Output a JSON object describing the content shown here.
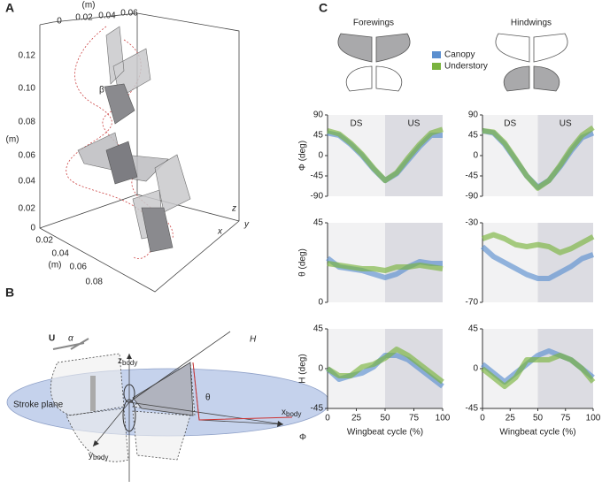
{
  "panel_a": {
    "label": "A",
    "unit": "(m)",
    "top_ticks": [
      "0",
      "0.02",
      "0.04",
      "0.06"
    ],
    "left_ticks": [
      "0.12",
      "0.10",
      "0.08",
      "0.06",
      "0.04",
      "0.02",
      "0"
    ],
    "bottom_ticks": [
      "0.02",
      "0.04",
      "0.06",
      "0.08"
    ],
    "axis_x": "x",
    "axis_y": "y",
    "axis_z": "z",
    "angle": "β"
  },
  "panel_b": {
    "label": "B",
    "velocity": "U",
    "alpha": "α",
    "z_axis": {
      "main": "z",
      "sub": "body"
    },
    "x_axis": {
      "main": "x",
      "sub": "body"
    },
    "y_axis": {
      "main": "y",
      "sub": "body"
    },
    "rotation": "H",
    "theta": "θ",
    "phi": "Φ",
    "plane": "Stroke plane"
  },
  "panel_c": {
    "label": "C",
    "columns": [
      "Forewings",
      "Hindwings"
    ],
    "legend": [
      {
        "name": "Canopy",
        "color": "#5b8fcf"
      },
      {
        "name": "Understory",
        "color": "#7ab33e"
      }
    ]
  },
  "chart_data": [
    {
      "type": "line",
      "ylabel": "Φ (deg)",
      "phase_labels": [
        "DS",
        "US"
      ],
      "phase_split": 50,
      "x": [
        0,
        10,
        20,
        30,
        40,
        50,
        60,
        70,
        80,
        90,
        100
      ],
      "xlim": [
        0,
        100
      ],
      "ylim": [
        -90,
        90
      ],
      "yticks": [
        -90,
        -45,
        0,
        45,
        90
      ],
      "series": [
        {
          "color": "#5b8fcf",
          "values": [
            50,
            45,
            25,
            0,
            -30,
            -55,
            -40,
            -10,
            20,
            45,
            45
          ]
        },
        {
          "color": "#7ab33e",
          "values": [
            55,
            48,
            28,
            3,
            -28,
            -55,
            -38,
            -5,
            25,
            50,
            58
          ]
        }
      ]
    },
    {
      "type": "line",
      "phase_labels": [
        "DS",
        "US"
      ],
      "phase_split": 50,
      "x": [
        0,
        10,
        20,
        30,
        40,
        50,
        60,
        70,
        80,
        90,
        100
      ],
      "xlim": [
        0,
        100
      ],
      "ylim": [
        -90,
        90
      ],
      "yticks": [
        -90,
        -45,
        0,
        45,
        90
      ],
      "series": [
        {
          "color": "#5b8fcf",
          "values": [
            55,
            50,
            25,
            -10,
            -45,
            -70,
            -55,
            -25,
            10,
            40,
            50
          ]
        },
        {
          "color": "#7ab33e",
          "values": [
            55,
            52,
            28,
            -8,
            -45,
            -72,
            -55,
            -22,
            15,
            45,
            62
          ]
        }
      ]
    },
    {
      "type": "line",
      "ylabel": "θ (deg)",
      "phase_split": 50,
      "x": [
        0,
        10,
        20,
        30,
        40,
        50,
        60,
        70,
        80,
        90,
        100
      ],
      "xlim": [
        0,
        100
      ],
      "ylim": [
        0,
        45
      ],
      "yticks": [
        0,
        45
      ],
      "series": [
        {
          "color": "#5b8fcf",
          "values": [
            25,
            20,
            19,
            18,
            16,
            14,
            16,
            20,
            23,
            22,
            22
          ]
        },
        {
          "color": "#7ab33e",
          "values": [
            22,
            21,
            20,
            19,
            19,
            18,
            20,
            20,
            21,
            20,
            19
          ]
        }
      ]
    },
    {
      "type": "line",
      "phase_split": 50,
      "x": [
        0,
        10,
        20,
        30,
        40,
        50,
        60,
        70,
        80,
        90,
        100
      ],
      "xlim": [
        0,
        100
      ],
      "ylim": [
        -70,
        -30
      ],
      "yticks": [
        -70,
        -30
      ],
      "series": [
        {
          "color": "#5b8fcf",
          "values": [
            -42,
            -47,
            -50,
            -53,
            -56,
            -58,
            -58,
            -55,
            -52,
            -48,
            -46
          ]
        },
        {
          "color": "#7ab33e",
          "values": [
            -38,
            -36,
            -38,
            -41,
            -42,
            -41,
            -42,
            -45,
            -43,
            -40,
            -37
          ]
        }
      ]
    },
    {
      "type": "line",
      "ylabel": "H (deg)",
      "xlabel": "Wingbeat cycle (%)",
      "phase_split": 50,
      "x": [
        0,
        10,
        20,
        30,
        40,
        50,
        60,
        70,
        80,
        90,
        100
      ],
      "xlim": [
        0,
        100
      ],
      "xticks": [
        0,
        25,
        50,
        75,
        100
      ],
      "ylim": [
        -45,
        45
      ],
      "yticks": [
        -45,
        0,
        45
      ],
      "series": [
        {
          "color": "#5b8fcf",
          "values": [
            0,
            -12,
            -8,
            -5,
            2,
            15,
            15,
            10,
            0,
            -10,
            -20
          ]
        },
        {
          "color": "#7ab33e",
          "values": [
            0,
            -8,
            -8,
            2,
            5,
            12,
            22,
            15,
            5,
            -5,
            -15
          ]
        }
      ]
    },
    {
      "type": "line",
      "xlabel": "Wingbeat cycle (%)",
      "phase_split": 50,
      "x": [
        0,
        10,
        20,
        30,
        40,
        50,
        60,
        70,
        80,
        90,
        100
      ],
      "xlim": [
        0,
        100
      ],
      "xticks": [
        0,
        25,
        50,
        75,
        100
      ],
      "ylim": [
        -45,
        45
      ],
      "yticks": [
        -45,
        0,
        45
      ],
      "series": [
        {
          "color": "#5b8fcf",
          "values": [
            5,
            -5,
            -15,
            -5,
            5,
            15,
            20,
            15,
            10,
            0,
            -10
          ]
        },
        {
          "color": "#7ab33e",
          "values": [
            0,
            -10,
            -20,
            -10,
            10,
            10,
            10,
            15,
            10,
            0,
            -15
          ]
        }
      ]
    }
  ]
}
